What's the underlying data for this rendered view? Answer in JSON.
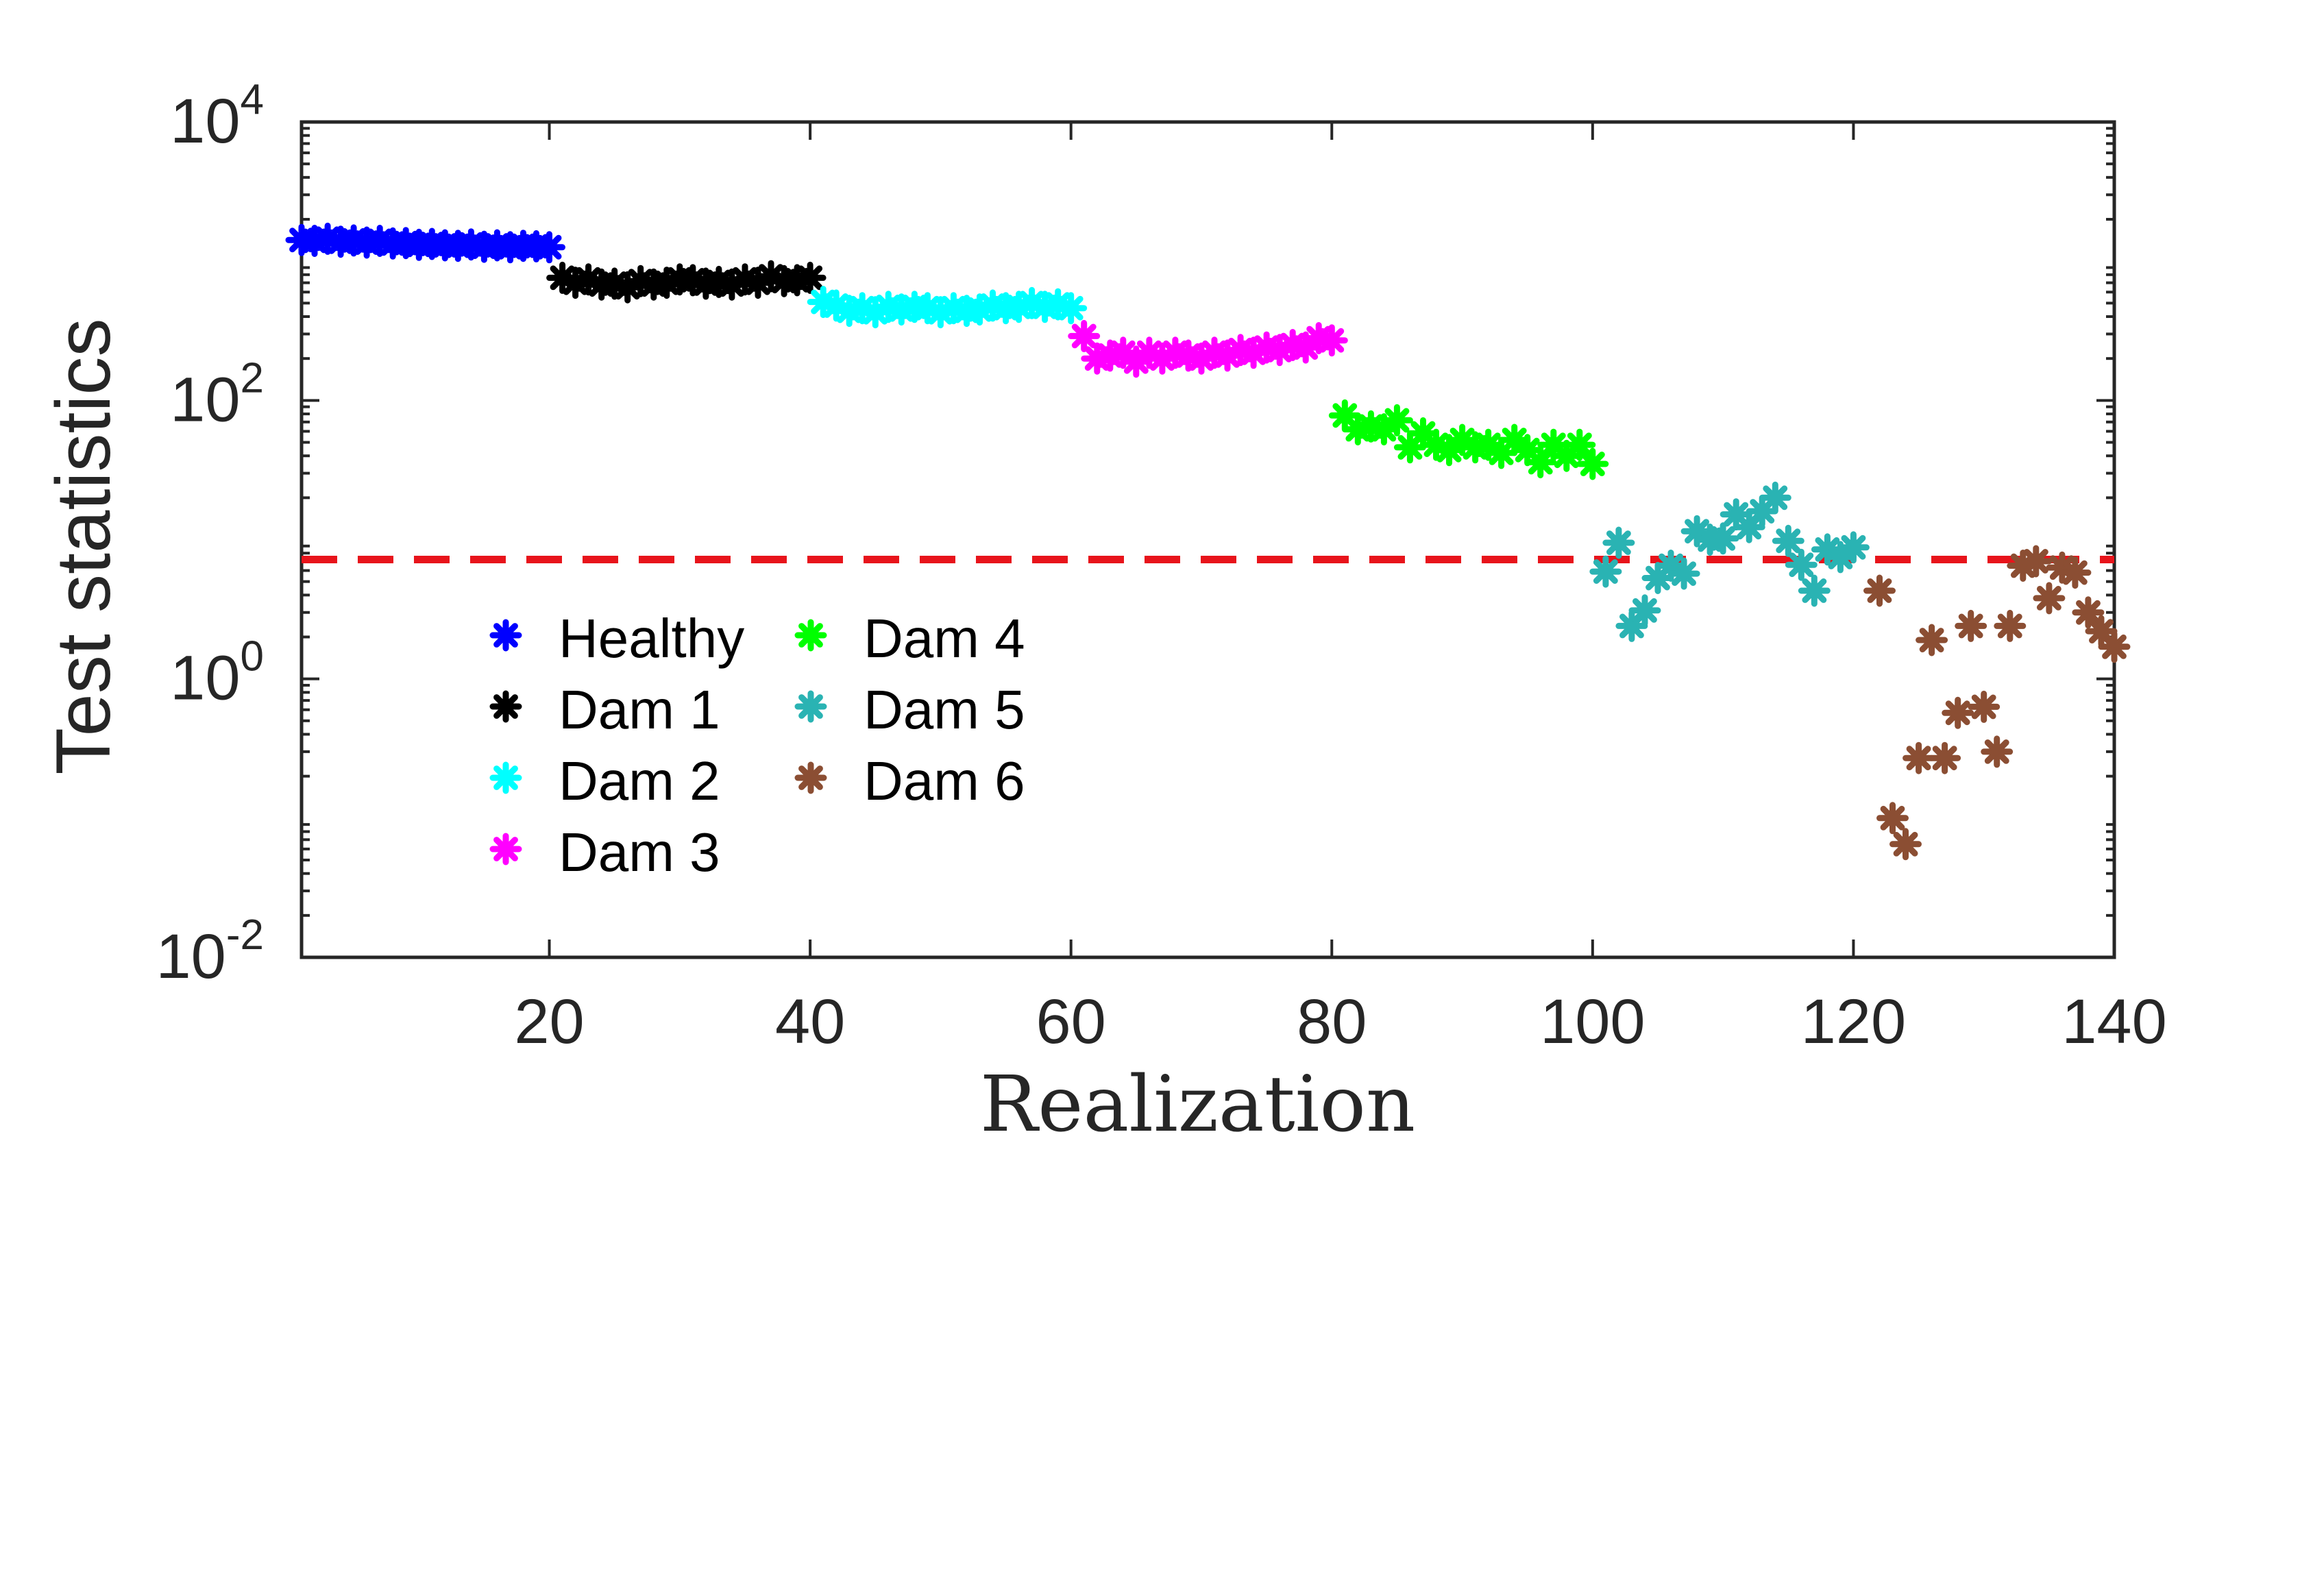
{
  "chart_data": {
    "type": "scatter",
    "title": "",
    "xlabel": "Realization",
    "ylabel": "Test statistics",
    "xlim": [
      1,
      140
    ],
    "ylim_log10": [
      -2,
      4
    ],
    "yscale": "log",
    "x_ticks": [
      20,
      40,
      60,
      80,
      100,
      120,
      140
    ],
    "x_tick_labels": [
      "20",
      "40",
      "60",
      "80",
      "100",
      "120",
      "140"
    ],
    "y_ticks": [
      {
        "exp": -2,
        "base": "10",
        "sup": "-2"
      },
      {
        "exp": 0,
        "base": "10",
        "sup": "0"
      },
      {
        "exp": 2,
        "base": "10",
        "sup": "2"
      },
      {
        "exp": 4,
        "base": "10",
        "sup": "4"
      }
    ],
    "threshold": {
      "value": 7.2,
      "color": "#e8141b",
      "style": "dashed"
    },
    "legend_placement": "lower-left",
    "series": [
      {
        "name": "Healthy",
        "color": "#0000ff",
        "marker": "*",
        "x": [
          1,
          2,
          3,
          4,
          5,
          6,
          7,
          8,
          9,
          10,
          11,
          12,
          13,
          14,
          15,
          16,
          17,
          18,
          19,
          20
        ],
        "y": [
          1420,
          1400,
          1450,
          1380,
          1410,
          1360,
          1400,
          1340,
          1350,
          1310,
          1330,
          1300,
          1290,
          1320,
          1270,
          1300,
          1260,
          1290,
          1280,
          1260
        ]
      },
      {
        "name": "Dam 1",
        "color": "#000000",
        "marker": "*",
        "x": [
          21,
          22,
          23,
          24,
          25,
          26,
          27,
          28,
          29,
          30,
          31,
          32,
          33,
          34,
          35,
          36,
          37,
          38,
          39,
          40
        ],
        "y": [
          760,
          700,
          740,
          680,
          690,
          650,
          720,
          680,
          700,
          740,
          730,
          690,
          710,
          680,
          740,
          700,
          780,
          720,
          730,
          760
        ]
      },
      {
        "name": "Dam 2",
        "color": "#00ffff",
        "marker": "*",
        "x": [
          41,
          42,
          43,
          44,
          45,
          46,
          47,
          48,
          49,
          50,
          51,
          52,
          53,
          54,
          55,
          56,
          57,
          58,
          59,
          60
        ],
        "y": [
          510,
          480,
          440,
          460,
          430,
          470,
          450,
          470,
          460,
          430,
          460,
          440,
          450,
          480,
          460,
          470,
          500,
          470,
          490,
          460
        ]
      },
      {
        "name": "Dam 3",
        "color": "#ff00ff",
        "marker": "*",
        "x": [
          61,
          62,
          63,
          64,
          65,
          66,
          67,
          68,
          69,
          70,
          71,
          72,
          73,
          74,
          75,
          76,
          77,
          78,
          79,
          80
        ],
        "y": [
          290,
          200,
          210,
          220,
          190,
          220,
          200,
          220,
          210,
          200,
          220,
          210,
          230,
          220,
          240,
          230,
          250,
          240,
          280,
          270
        ]
      },
      {
        "name": "Dam 4",
        "color": "#00ff00",
        "marker": "*",
        "x": [
          81,
          82,
          83,
          84,
          85,
          86,
          87,
          88,
          89,
          90,
          91,
          92,
          93,
          94,
          95,
          96,
          97,
          98,
          99,
          100
        ],
        "y": [
          78,
          62,
          65,
          62,
          72,
          46,
          58,
          48,
          44,
          52,
          46,
          48,
          42,
          52,
          44,
          36,
          48,
          40,
          48,
          35
        ]
      },
      {
        "name": "Dam 5",
        "color": "#2ab3b3",
        "marker": "*",
        "x": [
          101,
          102,
          103,
          104,
          105,
          106,
          107,
          108,
          109,
          110,
          111,
          112,
          113,
          114,
          115,
          116,
          117,
          118,
          119,
          120
        ],
        "y": [
          5.9,
          9.5,
          2.4,
          3.1,
          5.3,
          6.5,
          5.7,
          11.5,
          10.0,
          10.2,
          15.2,
          12.3,
          16.0,
          20.0,
          9.8,
          6.6,
          4.3,
          8.5,
          7.5,
          8.8
        ]
      },
      {
        "name": "Dam 6",
        "color": "#8b4e33",
        "marker": "*",
        "x": [
          122,
          123,
          124,
          125,
          126,
          127,
          128,
          129,
          130,
          131,
          132,
          133,
          134,
          135,
          136,
          137,
          138,
          139,
          140
        ],
        "y": [
          4.3,
          0.1,
          0.065,
          0.27,
          1.9,
          0.27,
          0.57,
          2.4,
          0.63,
          0.3,
          2.4,
          6.5,
          7.0,
          3.8,
          6.3,
          5.8,
          3.0,
          2.2,
          1.7
        ]
      }
    ]
  }
}
